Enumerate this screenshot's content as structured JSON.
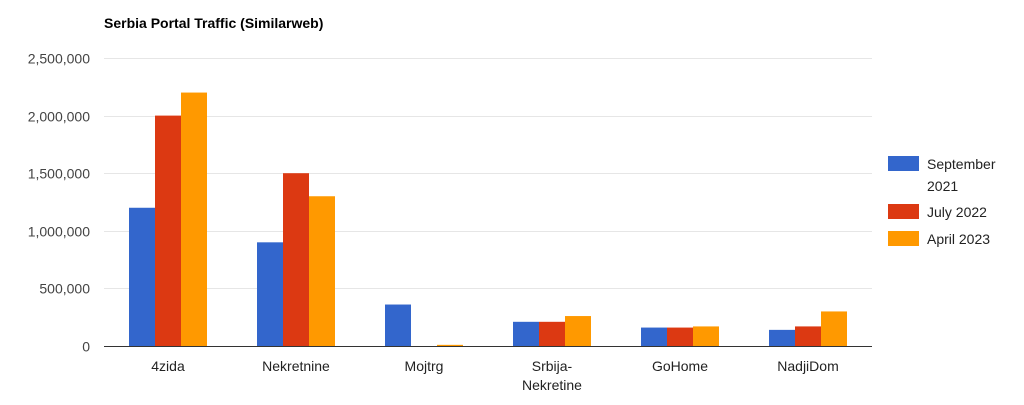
{
  "chart_data": {
    "type": "bar",
    "title": "Serbia Portal Traffic (Similarweb)",
    "xlabel": "",
    "ylabel": "",
    "categories": [
      [
        "4zida"
      ],
      [
        "Nekretnine"
      ],
      [
        "Mojtrg"
      ],
      [
        "Srbija-",
        "Nekretine"
      ],
      [
        "GoHome"
      ],
      [
        "NadjiDom"
      ]
    ],
    "series": [
      {
        "name": [
          "September",
          "2021"
        ],
        "color": "#3366cc",
        "values": [
          1200000,
          900000,
          360000,
          210000,
          160000,
          140000
        ]
      },
      {
        "name": [
          "July 2022"
        ],
        "color": "#dc3912",
        "values": [
          2000000,
          1500000,
          0,
          210000,
          160000,
          170000
        ]
      },
      {
        "name": [
          "April 2023"
        ],
        "color": "#ff9900",
        "values": [
          2200000,
          1300000,
          10000,
          260000,
          170000,
          300000
        ]
      }
    ],
    "ylim": [
      0,
      2500000
    ],
    "yticks": [
      {
        "value": 0,
        "label": "0"
      },
      {
        "value": 500000,
        "label": "500,000"
      },
      {
        "value": 1000000,
        "label": "1,000,000"
      },
      {
        "value": 1500000,
        "label": "1,500,000"
      },
      {
        "value": 2000000,
        "label": "2,000,000"
      },
      {
        "value": 2500000,
        "label": "2,500,000"
      }
    ],
    "grid": true,
    "legend_position": "right"
  }
}
